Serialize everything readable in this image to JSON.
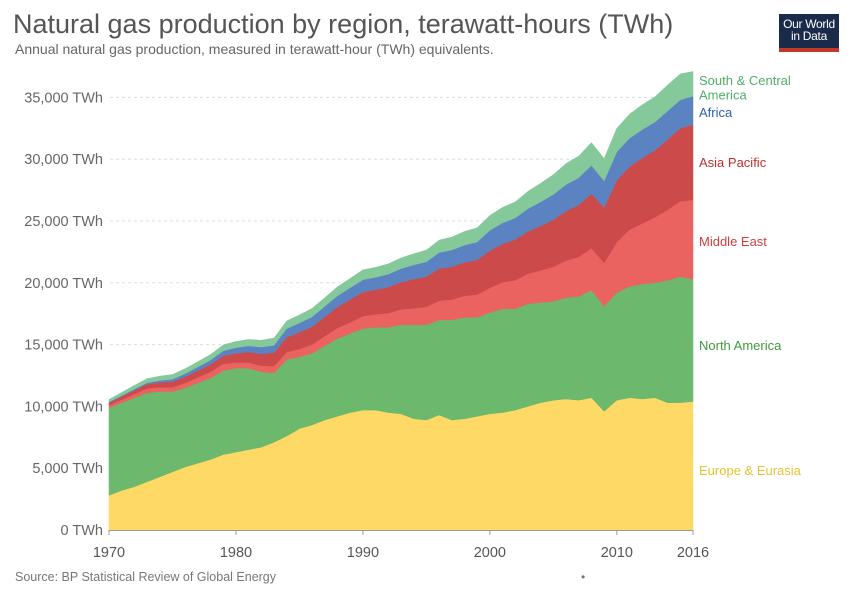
{
  "header": {
    "title": "Natural gas production by region, terawatt-hours (TWh)",
    "subtitle": "Annual natural gas production, measured in terawatt-hour (TWh) equivalents.",
    "logo_line1": "Our World",
    "logo_line2": "in Data"
  },
  "footer": {
    "source": "Source: BP Statistical Review of Global Energy",
    "dot": "•"
  },
  "chart_data": {
    "type": "area",
    "stacked": true,
    "title": "Natural gas production by region, terawatt-hours (TWh)",
    "subtitle": "Annual natural gas production, measured in terawatt-hour (TWh) equivalents.",
    "xlabel": "",
    "ylabel": "",
    "x_ticks": [
      "1970",
      "1980",
      "1990",
      "2000",
      "2010",
      "2016"
    ],
    "y_ticks": [
      "0 TWh",
      "5,000 TWh",
      "10,000 TWh",
      "15,000 TWh",
      "20,000 TWh",
      "25,000 TWh",
      "30,000 TWh",
      "35,000 TWh"
    ],
    "xlim": [
      1970,
      2016
    ],
    "ylim": [
      0,
      37000
    ],
    "grid": "horizontal dashed",
    "legend": "right, labels at series end",
    "x": [
      1970,
      1971,
      1972,
      1973,
      1974,
      1975,
      1976,
      1977,
      1978,
      1979,
      1980,
      1981,
      1982,
      1983,
      1984,
      1985,
      1986,
      1987,
      1988,
      1989,
      1990,
      1991,
      1992,
      1993,
      1994,
      1995,
      1996,
      1997,
      1998,
      1999,
      2000,
      2001,
      2002,
      2003,
      2004,
      2005,
      2006,
      2007,
      2008,
      2009,
      2010,
      2011,
      2012,
      2013,
      2014,
      2015,
      2016
    ],
    "series": [
      {
        "name": "Europe & Eurasia",
        "color": "#ffd966",
        "values": [
          2800,
          3200,
          3500,
          3900,
          4300,
          4700,
          5100,
          5400,
          5700,
          6100,
          6300,
          6500,
          6700,
          7100,
          7600,
          8200,
          8500,
          8900,
          9200,
          9500,
          9700,
          9700,
          9500,
          9400,
          9000,
          8900,
          9300,
          8900,
          9000,
          9200,
          9400,
          9500,
          9700,
          10000,
          10300,
          10500,
          10600,
          10500,
          10700,
          9600,
          10500,
          10700,
          10600,
          10700,
          10300,
          10300,
          10400
        ]
      },
      {
        "name": "North America",
        "color": "#6cb86c",
        "values": [
          7100,
          7100,
          7200,
          7200,
          6900,
          6500,
          6400,
          6500,
          6600,
          6800,
          6800,
          6600,
          6100,
          5600,
          6200,
          5800,
          5800,
          6000,
          6300,
          6400,
          6600,
          6700,
          6900,
          7200,
          7600,
          7700,
          7700,
          8100,
          8200,
          8000,
          8200,
          8400,
          8200,
          8300,
          8100,
          8000,
          8200,
          8400,
          8700,
          8500,
          8700,
          9000,
          9300,
          9300,
          9900,
          10200,
          9900
        ]
      },
      {
        "name": "Middle East",
        "color": "#ea6360",
        "values": [
          200,
          250,
          300,
          350,
          350,
          350,
          400,
          450,
          500,
          550,
          450,
          450,
          500,
          550,
          600,
          650,
          700,
          800,
          850,
          900,
          1000,
          1050,
          1150,
          1250,
          1350,
          1450,
          1550,
          1650,
          1750,
          1850,
          2000,
          2150,
          2300,
          2450,
          2600,
          2800,
          3000,
          3200,
          3400,
          3500,
          4100,
          4600,
          4900,
          5300,
          5700,
          6100,
          6400
        ]
      },
      {
        "name": "Asia Pacific",
        "color": "#cd4a4a",
        "values": [
          200,
          250,
          300,
          350,
          400,
          450,
          500,
          550,
          600,
          650,
          750,
          850,
          950,
          1100,
          1200,
          1350,
          1450,
          1550,
          1700,
          1850,
          1950,
          2000,
          2100,
          2200,
          2350,
          2450,
          2600,
          2650,
          2700,
          2800,
          3000,
          3100,
          3300,
          3400,
          3600,
          3800,
          4000,
          4200,
          4400,
          4500,
          5000,
          5100,
          5300,
          5400,
          5700,
          5900,
          6100
        ]
      },
      {
        "name": "Africa",
        "color": "#5b83c2",
        "values": [
          60,
          80,
          100,
          120,
          150,
          200,
          250,
          300,
          350,
          400,
          450,
          500,
          550,
          600,
          700,
          750,
          800,
          850,
          900,
          950,
          1000,
          1000,
          1050,
          1100,
          1150,
          1200,
          1300,
          1350,
          1400,
          1450,
          1650,
          1700,
          1750,
          1850,
          1950,
          2050,
          2150,
          2200,
          2300,
          2150,
          2300,
          2300,
          2300,
          2300,
          2300,
          2300,
          2300
        ]
      },
      {
        "name": "South & Central America",
        "color": "#85c99a",
        "values": [
          200,
          250,
          300,
          320,
          350,
          380,
          400,
          420,
          450,
          480,
          500,
          520,
          550,
          580,
          620,
          650,
          680,
          700,
          730,
          760,
          800,
          800,
          830,
          860,
          900,
          950,
          1000,
          1050,
          1100,
          1150,
          1200,
          1250,
          1300,
          1400,
          1500,
          1600,
          1700,
          1750,
          1850,
          1800,
          1900,
          1950,
          2000,
          2050,
          2100,
          2100,
          2000
        ]
      }
    ],
    "label_texts": [
      [
        "South & Central",
        "America"
      ],
      [
        "Africa"
      ],
      [
        "Asia Pacific"
      ],
      [
        "Middle East"
      ],
      [
        "North America"
      ],
      [
        "Europe & Eurasia"
      ]
    ]
  }
}
